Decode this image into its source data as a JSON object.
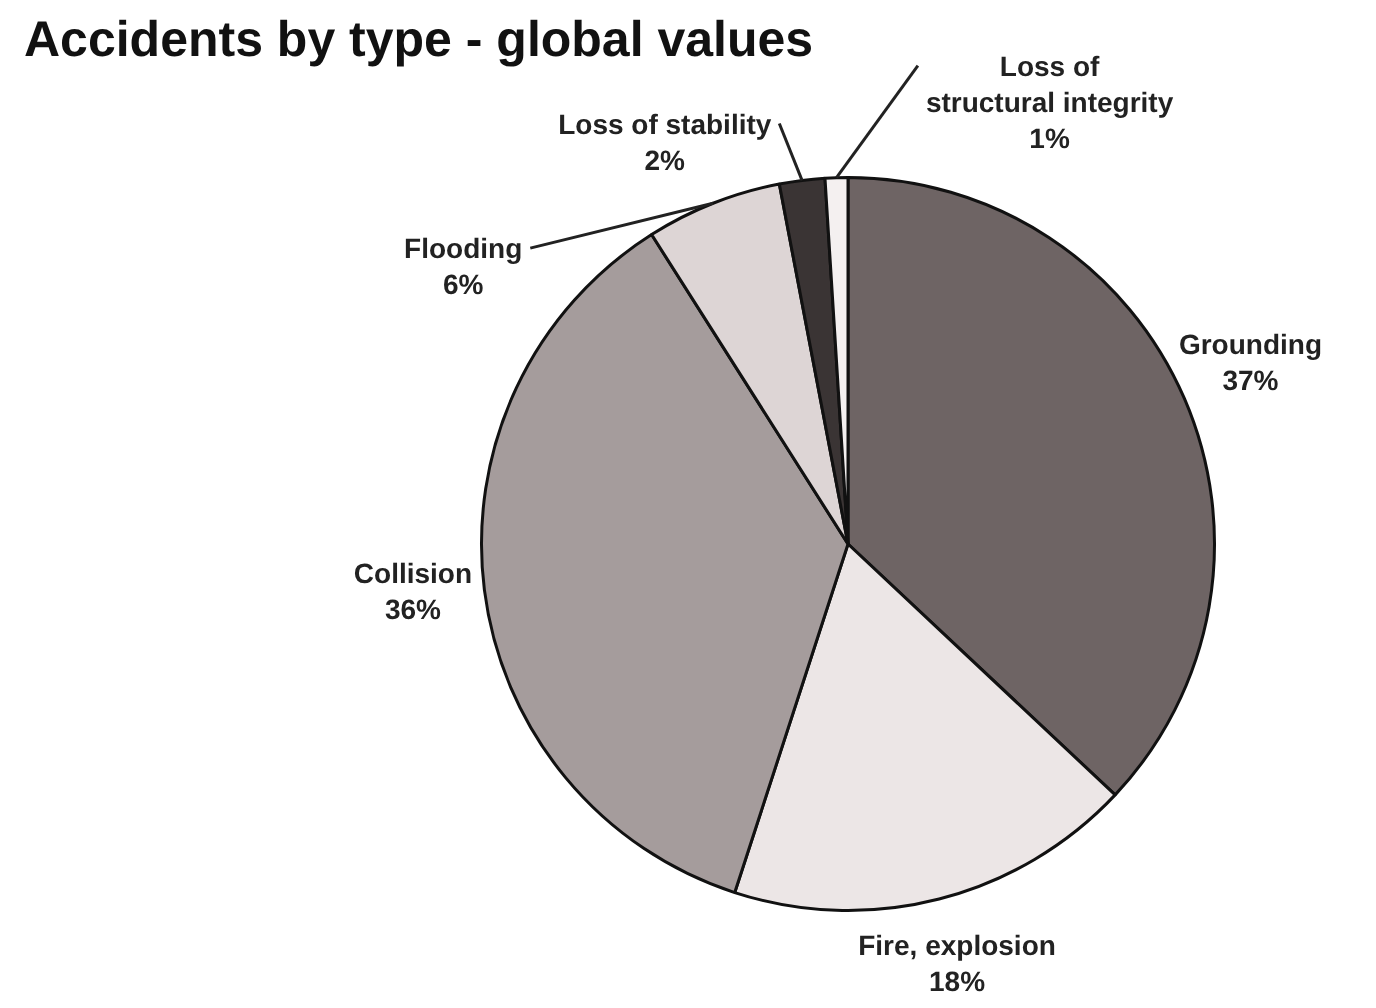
{
  "chart_data": {
    "type": "pie",
    "title": "Accidents by type - global values",
    "categories": [
      "Grounding",
      "Fire, explosion",
      "Collision",
      "Flooding",
      "Loss of stability",
      "Loss of structural integrity"
    ],
    "values": [
      37,
      18,
      36,
      6,
      2,
      1
    ],
    "value_labels": [
      "37%",
      "18%",
      "36%",
      "6%",
      "2%",
      "1%"
    ],
    "colors": [
      "#6e6464",
      "#ece6e6",
      "#a59c9c",
      "#ddd5d5",
      "#3a3434",
      "#f4f0f0"
    ],
    "legend": false
  }
}
